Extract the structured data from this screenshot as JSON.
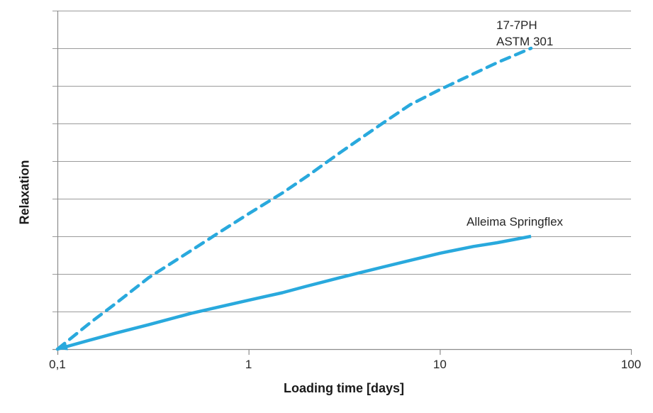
{
  "chart_data": {
    "type": "line",
    "title": "",
    "xlabel": "Loading time [days]",
    "ylabel": "Relaxation",
    "x_axis": {
      "scale": "log",
      "range_days": [
        0.1,
        100
      ],
      "ticks": [
        {
          "label": "0,1",
          "value": 0.1
        },
        {
          "label": "1",
          "value": 1
        },
        {
          "label": "10",
          "value": 10
        },
        {
          "label": "100",
          "value": 100
        }
      ]
    },
    "y_axis": {
      "labeled": false,
      "gridline_count": 9,
      "range_units": [
        0,
        9
      ],
      "note": "no numeric tick labels shown; values in relative gridline units"
    },
    "legend_position": "labels-near-lines",
    "grid": "horizontal-only",
    "series": [
      {
        "name": "17-7PH ASTM 301",
        "label_lines": [
          "17-7PH",
          "ASTM 301"
        ],
        "style": "dashed",
        "color": "#29a9dd",
        "points": [
          [
            0.1,
            0
          ],
          [
            0.15,
            0.72
          ],
          [
            0.2,
            1.2
          ],
          [
            0.3,
            1.9
          ],
          [
            0.5,
            2.62
          ],
          [
            0.7,
            3.1
          ],
          [
            1,
            3.6
          ],
          [
            1.5,
            4.15
          ],
          [
            2,
            4.58
          ],
          [
            3,
            5.22
          ],
          [
            5,
            6.0
          ],
          [
            7,
            6.5
          ],
          [
            10,
            6.9
          ],
          [
            15,
            7.32
          ],
          [
            20,
            7.62
          ],
          [
            30,
            8.0
          ]
        ]
      },
      {
        "name": "Alleima Springflex",
        "label_lines": [
          "Alleima Springflex"
        ],
        "style": "solid",
        "arrow_at_origin": true,
        "color": "#29a9dd",
        "points": [
          [
            0.1,
            0
          ],
          [
            0.15,
            0.25
          ],
          [
            0.2,
            0.42
          ],
          [
            0.3,
            0.65
          ],
          [
            0.5,
            0.95
          ],
          [
            0.7,
            1.12
          ],
          [
            1,
            1.3
          ],
          [
            1.5,
            1.5
          ],
          [
            2,
            1.67
          ],
          [
            3,
            1.9
          ],
          [
            5,
            2.18
          ],
          [
            7,
            2.36
          ],
          [
            10,
            2.55
          ],
          [
            15,
            2.73
          ],
          [
            20,
            2.83
          ],
          [
            30,
            3.0
          ]
        ]
      }
    ],
    "colors": {
      "line": "#29a9dd",
      "grid": "#9b9b9b",
      "axis": "#8c8c8c",
      "text": "#262626",
      "background": "#ffffff"
    }
  }
}
